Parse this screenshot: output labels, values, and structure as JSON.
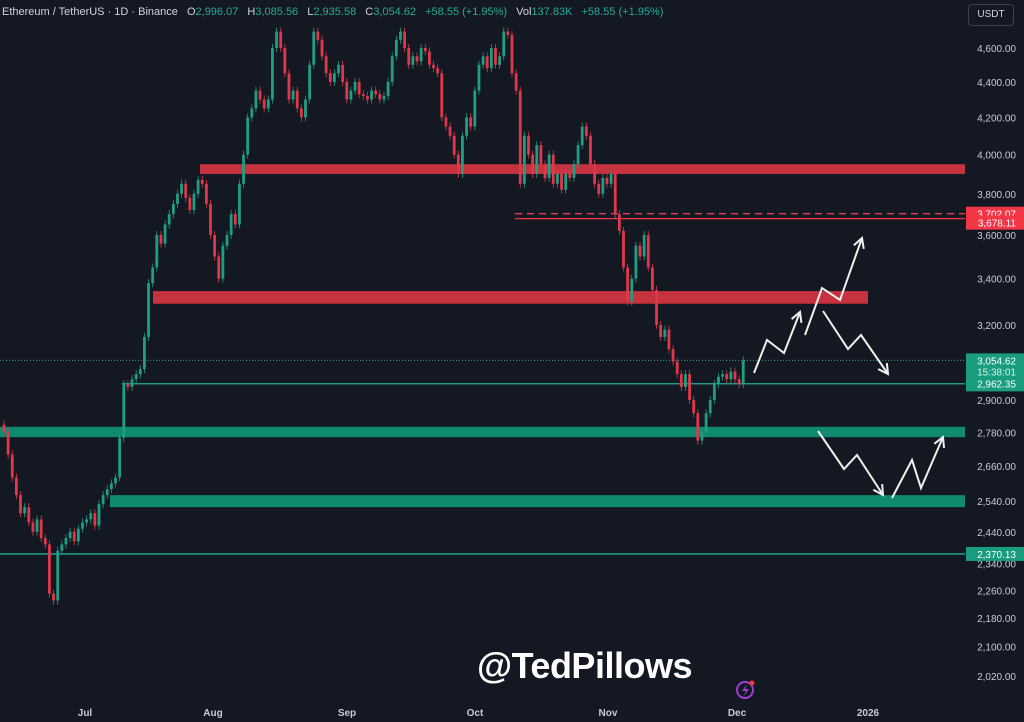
{
  "header": {
    "symbol": "Ethereum / TetherUS · 1D · Binance",
    "open_label": "O",
    "open": "2,996.07",
    "high_label": "H",
    "high": "3,085.56",
    "low_label": "L",
    "low": "2,935.58",
    "close_label": "C",
    "close": "3,054.62",
    "change": "+58.55 (+1.95%)",
    "vol_label": "Vol",
    "vol": "137.83K",
    "change2": "+58.55 (+1.95%)"
  },
  "currency_button": "USDT",
  "watermark": "@TedPillows",
  "colors": {
    "background": "#141823",
    "up": "#1f9e82",
    "down": "#e0384a",
    "resistance_zone": "#c7323f",
    "support_zone": "#0f8a6e",
    "arrows": "#f0f0f0"
  },
  "icons": {
    "bottom": "lightning-icon"
  },
  "chart_data": {
    "type": "candlestick",
    "title": "",
    "y_scale": "log",
    "ylim": [
      1980,
      4780
    ],
    "x_ticks": [
      "Jul",
      "Aug",
      "Sep",
      "Oct",
      "Nov",
      "Dec",
      "2026"
    ],
    "y_ticks": [
      "4,600.00",
      "4,400.00",
      "4,200.00",
      "4,000.00",
      "3,800.00",
      "3,600.00",
      "3,400.00",
      "3,200.00",
      "2,900.00",
      "2,780.00",
      "2,660.00",
      "2,540.00",
      "2,440.00",
      "2,340.00",
      "2,260.00",
      "2,180.00",
      "2,100.00",
      "2,020.00"
    ],
    "y_tick_values": [
      4600,
      4400,
      4200,
      4000,
      3800,
      3600,
      3400,
      3200,
      2900,
      2780,
      2660,
      2540,
      2440,
      2340,
      2260,
      2180,
      2100,
      2020
    ],
    "closes": [
      2780,
      2700,
      2620,
      2560,
      2500,
      2520,
      2470,
      2440,
      2480,
      2420,
      2400,
      2250,
      2230,
      2380,
      2400,
      2420,
      2440,
      2410,
      2450,
      2470,
      2480,
      2500,
      2460,
      2530,
      2560,
      2580,
      2600,
      2620,
      2760,
      2960,
      2950,
      2980,
      3000,
      3020,
      3150,
      3380,
      3450,
      3600,
      3560,
      3650,
      3700,
      3750,
      3800,
      3850,
      3780,
      3720,
      3800,
      3870,
      3850,
      3750,
      3600,
      3500,
      3400,
      3550,
      3600,
      3700,
      3650,
      3850,
      4000,
      4200,
      4250,
      4350,
      4300,
      4250,
      4300,
      4600,
      4700,
      4600,
      4450,
      4300,
      4350,
      4250,
      4200,
      4300,
      4500,
      4700,
      4650,
      4550,
      4450,
      4400,
      4450,
      4500,
      4400,
      4300,
      4350,
      4400,
      4330,
      4320,
      4300,
      4350,
      4330,
      4300,
      4320,
      4400,
      4550,
      4650,
      4700,
      4600,
      4500,
      4550,
      4520,
      4600,
      4580,
      4500,
      4480,
      4450,
      4200,
      4150,
      4100,
      4000,
      3900,
      4100,
      4200,
      4150,
      4350,
      4500,
      4550,
      4480,
      4600,
      4500,
      4550,
      4700,
      4680,
      4450,
      4350,
      3850,
      4100,
      4000,
      3900,
      4050,
      3950,
      3880,
      4000,
      3850,
      3900,
      3820,
      3900,
      3880,
      3950,
      4050,
      4150,
      4100,
      3950,
      3850,
      3800,
      3880,
      3850,
      3900,
      3700,
      3620,
      3450,
      3300,
      3400,
      3550,
      3500,
      3600,
      3450,
      3350,
      3200,
      3150,
      3180,
      3100,
      3050,
      3000,
      2950,
      3000,
      2900,
      2850,
      2750,
      2780,
      2850,
      2900,
      2960,
      2990,
      3000,
      2980,
      3010,
      2980,
      2960,
      3054.62
    ],
    "zones": [
      {
        "kind": "resistance",
        "top": 3950,
        "bottom": 3900
      },
      {
        "kind": "resistance",
        "top": 3345,
        "bottom": 3290
      },
      {
        "kind": "support",
        "top": 2800,
        "bottom": 2762
      },
      {
        "kind": "support",
        "top": 2560,
        "bottom": 2520
      }
    ],
    "levels": [
      {
        "label": "3,702.07",
        "value": 3702.07,
        "style": "dashed",
        "color": "#f23645"
      },
      {
        "label": "3,678.11",
        "value": 3678.11,
        "style": "solid",
        "color": "#f23645"
      },
      {
        "label": "2,962.35",
        "value": 2962.35,
        "style": "solid",
        "color": "#22ab94"
      },
      {
        "label": "2,370.13",
        "value": 2370.13,
        "style": "solid",
        "color": "#22ab94"
      }
    ],
    "last_price": {
      "label": "3,054.62",
      "countdown": "15:38:01",
      "value": 3054.62
    },
    "scenarios": [
      "up-up",
      "up-then-down",
      "down-then-up"
    ]
  }
}
